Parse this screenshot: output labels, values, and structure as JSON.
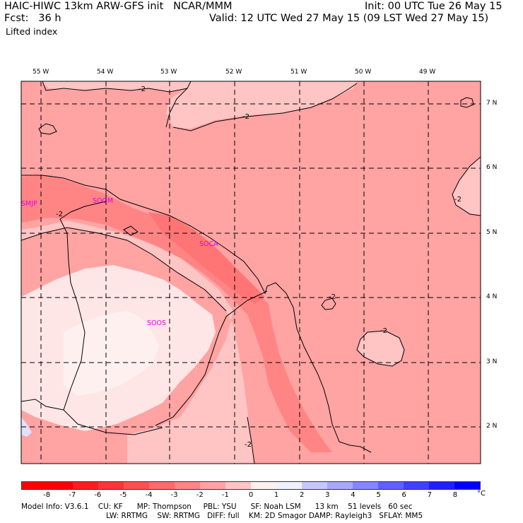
{
  "header": {
    "model_line": "HAIC-HIWC 13km ARW-GFS init   NCAR/MMM",
    "init_line": "Init: 00 UTC Tue 26 May 15",
    "fcst_line": "Fcst:   36 h",
    "valid_line": "Valid: 12 UTC Wed 27 May 15 (09 LST Wed 27 May 15)",
    "field_name": "Lifted index"
  },
  "map": {
    "lon_labels": [
      "55 W",
      "54 W",
      "53 W",
      "52 W",
      "51 W",
      "50 W",
      "49 W"
    ],
    "lat_labels": [
      "7 N",
      "6 N",
      "5 N",
      "4 N",
      "3 N",
      "2 N"
    ],
    "contour_labels": [
      "-2",
      "-2",
      "-2",
      "-2",
      "-2",
      "-2",
      "-2"
    ],
    "stations": [
      "SMJP",
      "SOGM",
      "SOCA",
      "SOOS"
    ]
  },
  "colorbar": {
    "unit": "°C",
    "ticks": [
      "-8",
      "-7",
      "-6",
      "-5",
      "-4",
      "-3",
      "-2",
      "-1",
      "0",
      "1",
      "2",
      "3",
      "4",
      "5",
      "6",
      "7",
      "8"
    ],
    "colors": [
      "#ff0000",
      "#ff1d1d",
      "#ff3535",
      "#ff5050",
      "#ff6a6a",
      "#ff8585",
      "#ffa3a3",
      "#ffc4c4",
      "#fff0f0",
      "#f0f0ff",
      "#c7c7ff",
      "#a8a8ff",
      "#8686ff",
      "#6060ff",
      "#4040ff",
      "#2020ff",
      "#0000ff"
    ]
  },
  "footer": {
    "line1": "Model Info: V3.6.1    CU: KF      MP: Thompson     PBL: YSU      SF: Noah LSM      13 km    51 levels   60 sec",
    "line2": "LW: RRTMG    SW: RRTMG   DIFF: full    KM: 2D Smagor DAMP: Rayleigh3   SFLAY: MM5"
  }
}
